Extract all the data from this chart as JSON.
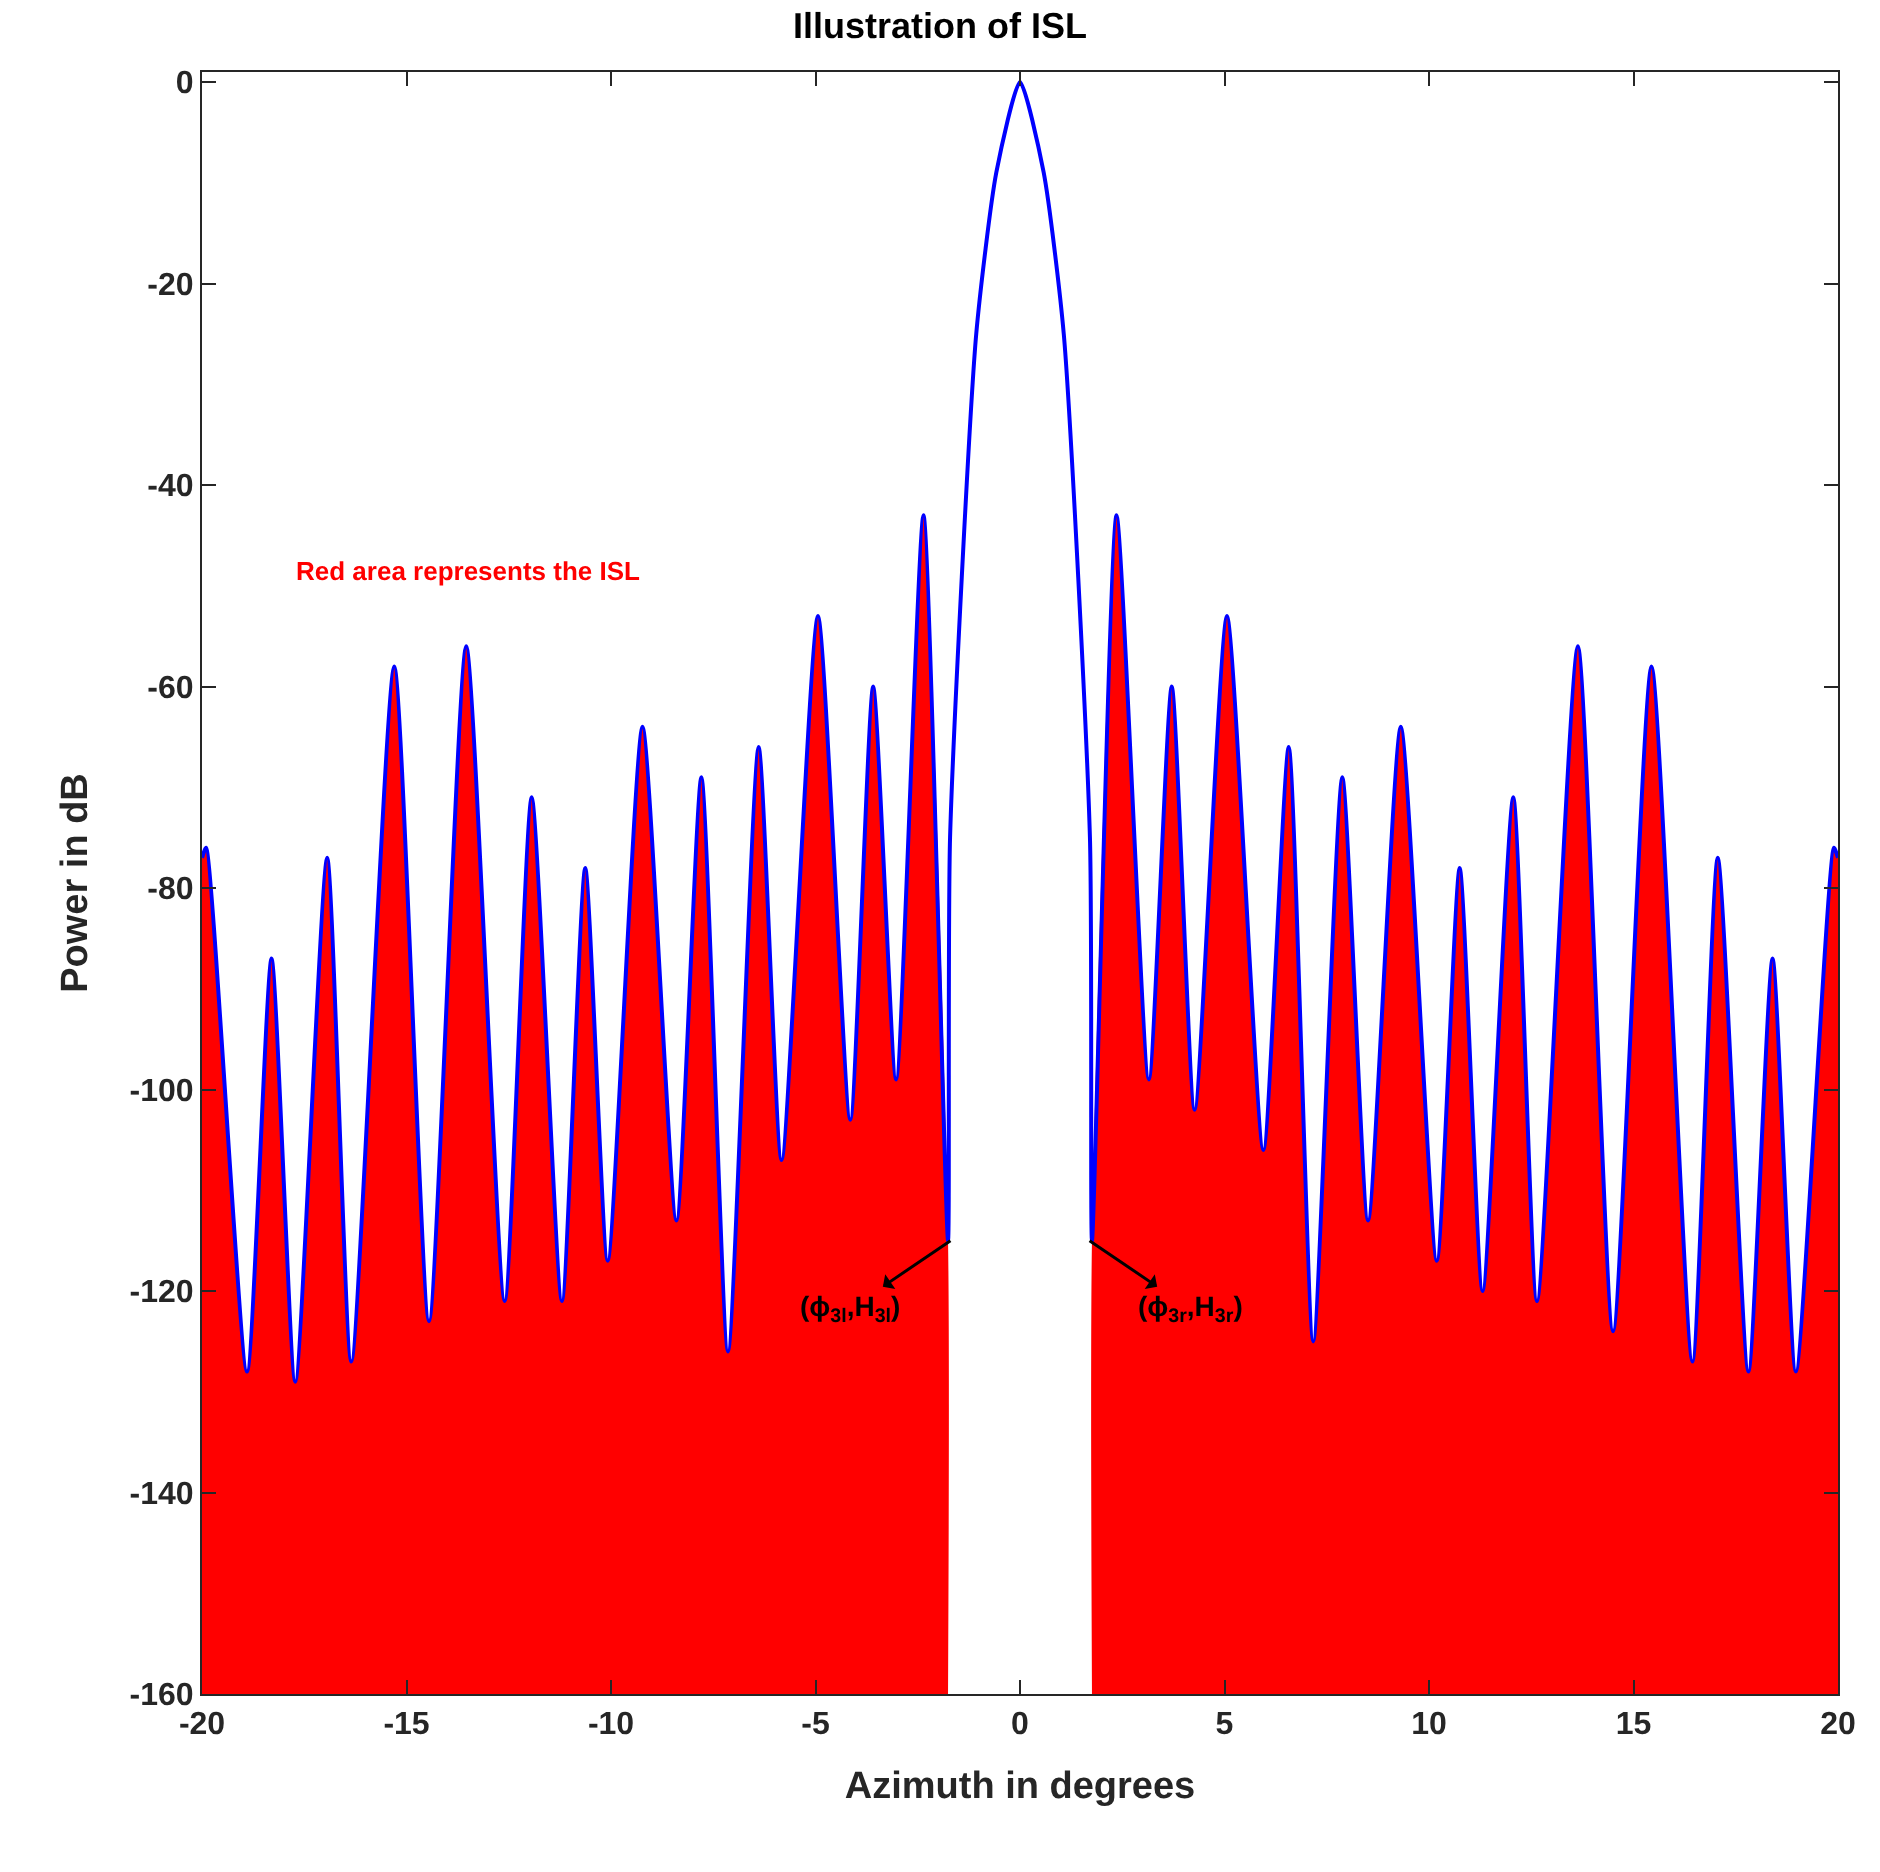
{
  "chart_data": {
    "type": "line",
    "title": "Illustration of ISL",
    "xlabel": "Azimuth in degrees",
    "ylabel": "Power in dB",
    "x": [
      -20,
      -19.9,
      -18.9,
      -18.3,
      -17.72,
      -16.94,
      -16.35,
      -15.3,
      -14.45,
      -13.54,
      -12.6,
      -11.94,
      -11.2,
      -10.63,
      -10.08,
      -9.23,
      -8.4,
      -7.79,
      -7.14,
      -6.39,
      -5.83,
      -4.94,
      -4.15,
      -3.59,
      -3.03,
      -2.36,
      -1.76,
      -1.71,
      -1.07,
      -0.58,
      0,
      0.58,
      1.07,
      1.71,
      1.76,
      2.36,
      3.15,
      3.71,
      4.27,
      5.06,
      5.95,
      6.57,
      7.17,
      7.88,
      8.51,
      9.31,
      10.19,
      10.75,
      11.31,
      12.06,
      12.64,
      13.64,
      14.5,
      15.44,
      16.44,
      17.06,
      17.81,
      18.4,
      18.97,
      19.9,
      20
    ],
    "series": [
      {
        "type": "area",
        "color": "#ff0000",
        "x": [
          -20,
          -20,
          -19.9,
          -18.9,
          -18.3,
          -17.72,
          -16.94,
          -16.35,
          -15.3,
          -14.45,
          -13.54,
          -12.6,
          -11.94,
          -11.2,
          -10.63,
          -10.08,
          -9.23,
          -8.4,
          -7.79,
          -7.14,
          -6.39,
          -5.83,
          -4.94,
          -4.15,
          -3.59,
          -3.03,
          -2.36,
          -1.76,
          -1.76,
          0,
          1.76,
          1.76,
          2.36,
          3.15,
          3.71,
          4.27,
          5.06,
          5.95,
          6.57,
          7.17,
          7.88,
          8.51,
          9.31,
          10.19,
          10.75,
          11.31,
          12.06,
          12.64,
          13.64,
          14.5,
          15.44,
          16.44,
          17.06,
          17.81,
          18.4,
          18.97,
          19.9,
          20,
          20
        ],
        "values": [
          -160,
          -77,
          -76,
          -128,
          -87,
          -129,
          -77,
          -127,
          -58,
          -123,
          -56,
          -121,
          -71,
          -121,
          -78,
          -117,
          -64,
          -113,
          -69,
          -126,
          -66,
          -107,
          -53,
          -103,
          -60,
          -99,
          -43,
          -115,
          -160,
          null,
          -160,
          -115,
          -43,
          -99,
          -60,
          -102,
          -53,
          -106,
          -66,
          -125,
          -69,
          -113,
          -64,
          -117,
          -78,
          -120,
          -71,
          -121,
          -56,
          -124,
          -58,
          -127,
          -77,
          -128,
          -87,
          -128,
          -76,
          -77,
          -160
        ]
      },
      {
        "type": "line",
        "color": "#0000ff",
        "values": [
          -77,
          -76,
          -128,
          -87,
          -129,
          -77,
          -127,
          -58,
          -123,
          -56,
          -121,
          -71,
          -121,
          -78,
          -117,
          -64,
          -113,
          -69,
          -126,
          -66,
          -107,
          -53,
          -103,
          -60,
          -99,
          -43,
          -115,
          -75,
          -25,
          -9,
          0,
          -9,
          -25,
          -75,
          -115,
          -43,
          -99,
          -60,
          -102,
          -53,
          -106,
          -66,
          -125,
          -69,
          -113,
          -64,
          -117,
          -78,
          -120,
          -71,
          -121,
          -56,
          -124,
          -58,
          -127,
          -77,
          -128,
          -87,
          -128,
          -76,
          -77
        ]
      }
    ],
    "annotations": [
      "Red area represents the ISL",
      {
        "text": "(ϕ$_{3l}$,H$_{3l}$)",
        "x": -1.7,
        "y": -115
      },
      {
        "text": "(ϕ$_{3r}$,H$_{3r}$)",
        "x": 1.7,
        "y": -115
      }
    ],
    "xlim": [
      -20,
      20
    ],
    "xticks": [
      -20,
      -15,
      -10,
      -5,
      0,
      5,
      10,
      15,
      20
    ],
    "ylim": [
      -160,
      1
    ],
    "yticks": [
      0,
      -20,
      -40,
      -60,
      -80,
      -100,
      -120,
      -140,
      -160
    ]
  }
}
